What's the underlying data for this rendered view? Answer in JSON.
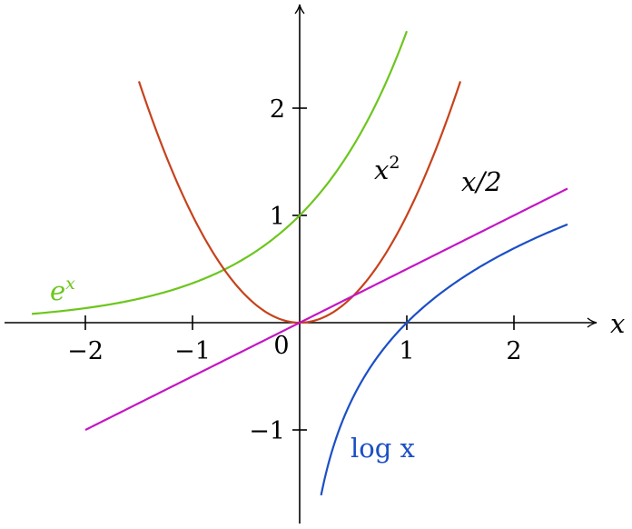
{
  "chart_data": {
    "type": "line",
    "xlabel": "x",
    "ylabel": "",
    "xlim": [
      -2.8,
      2.8
    ],
    "ylim": [
      -1.9,
      2.95
    ],
    "x_ticks": [
      {
        "value": -2,
        "label": "−2"
      },
      {
        "value": -1,
        "label": "−1"
      },
      {
        "value": 1,
        "label": "1"
      },
      {
        "value": 2,
        "label": "2"
      }
    ],
    "y_ticks": [
      {
        "value": -1,
        "label": "−1"
      },
      {
        "value": 1,
        "label": "1"
      },
      {
        "value": 2,
        "label": "2"
      }
    ],
    "origin_label": "0",
    "grid": false,
    "series": [
      {
        "name": "e^x",
        "function": "exp",
        "domain": [
          -2.5,
          1.0
        ],
        "color": "#6cc61d",
        "label": {
          "base": "e",
          "sup": "x"
        },
        "points": [
          [
            -2.5,
            0.082
          ],
          [
            -2,
            0.135
          ],
          [
            -1.5,
            0.223
          ],
          [
            -1,
            0.368
          ],
          [
            -0.5,
            0.607
          ],
          [
            0,
            1
          ],
          [
            0.5,
            1.649
          ],
          [
            1,
            2.718
          ]
        ]
      },
      {
        "name": "x^2",
        "function": "square",
        "domain": [
          -1.5,
          1.5
        ],
        "color": "#c7421b",
        "label": {
          "base": "x",
          "sup": "2"
        },
        "points": [
          [
            -1.5,
            2.25
          ],
          [
            -1,
            1
          ],
          [
            -0.5,
            0.25
          ],
          [
            0,
            0
          ],
          [
            0.5,
            0.25
          ],
          [
            1,
            1
          ],
          [
            1.5,
            2.25
          ]
        ]
      },
      {
        "name": "x/2",
        "function": "half",
        "domain": [
          -2,
          2.5
        ],
        "color": "#c416c4",
        "label": {
          "text": "x/2"
        },
        "points": [
          [
            -2,
            -1
          ],
          [
            0,
            0
          ],
          [
            2.5,
            1.25
          ]
        ]
      },
      {
        "name": "log x",
        "function": "log",
        "domain": [
          0.2,
          2.5
        ],
        "color": "#1c4fc6",
        "label": {
          "text": "log x"
        },
        "points": [
          [
            0.2,
            -1.609
          ],
          [
            0.5,
            -0.693
          ],
          [
            1,
            0
          ],
          [
            1.5,
            0.405
          ],
          [
            2,
            0.693
          ],
          [
            2.5,
            0.916
          ]
        ]
      }
    ]
  }
}
